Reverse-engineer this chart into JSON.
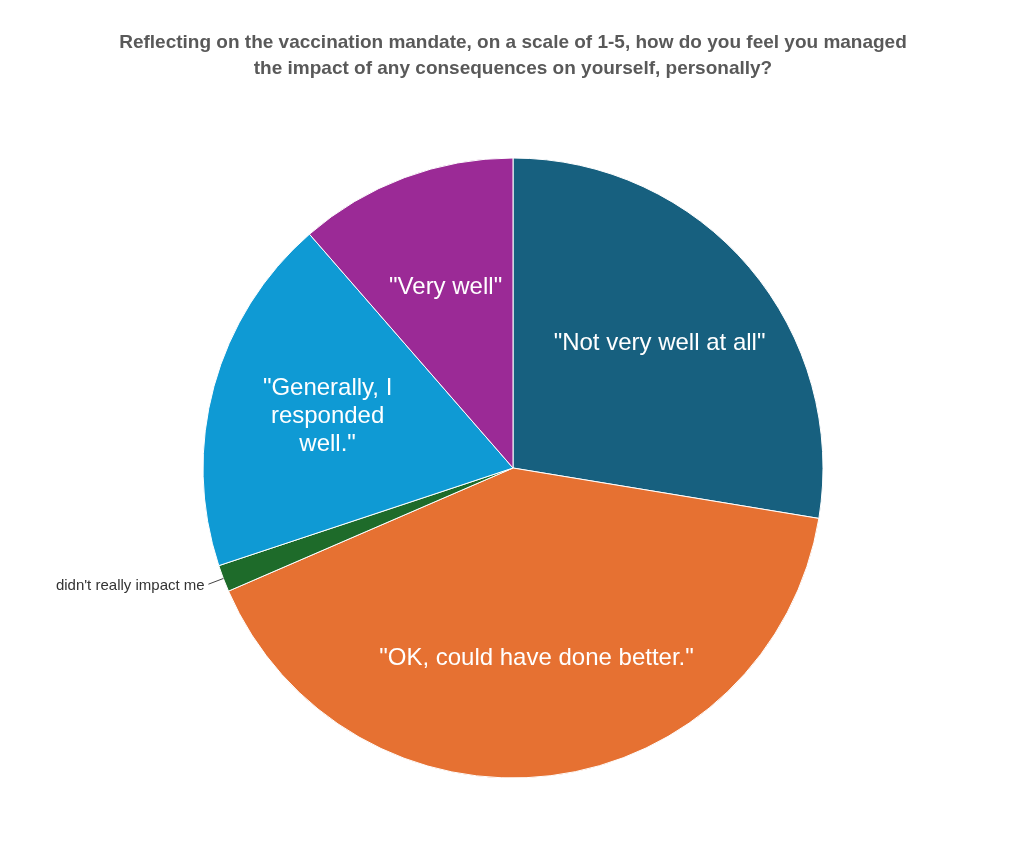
{
  "chart_data": {
    "type": "pie",
    "title": "Reflecting on the vaccination mandate, on a scale of 1-5, how do you feel you managed the impact of any consequences on yourself, personally?",
    "categories": [
      "\"Not very well at all\"",
      "\"OK, could have done better.\"",
      "didn't really impact me",
      "\"Generally, I responded well.\"",
      "\"Very well\""
    ],
    "values": [
      27.6,
      40.9,
      1.4,
      18.7,
      11.4
    ],
    "colors": [
      "#17607f",
      "#e67132",
      "#1e6b2a",
      "#0f9ad4",
      "#9b2a96"
    ]
  }
}
